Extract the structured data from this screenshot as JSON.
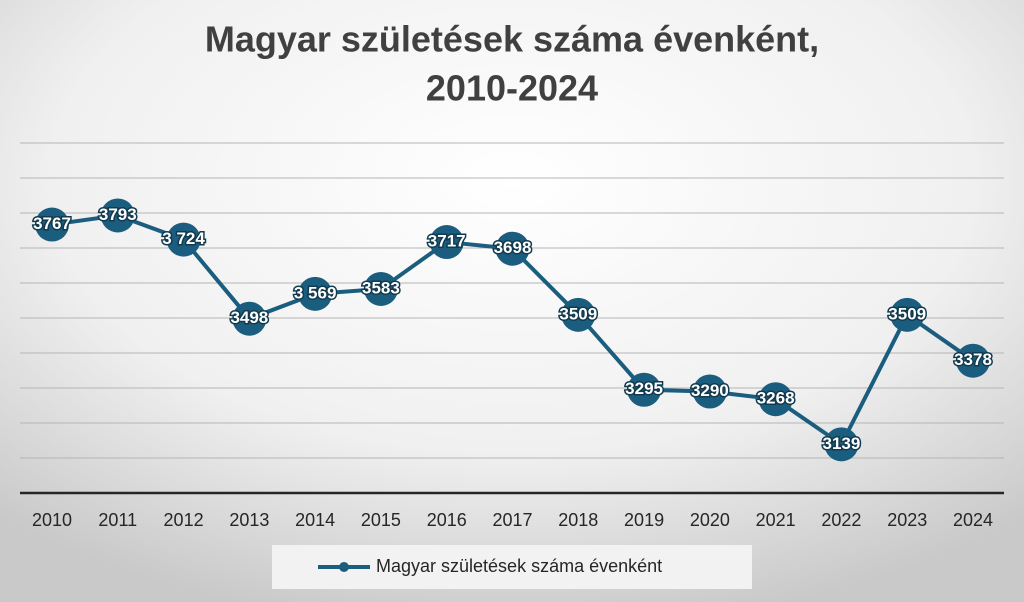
{
  "chart_data": {
    "type": "line",
    "title": [
      "Magyar születések száma évenként,",
      "2010-2024"
    ],
    "categories": [
      "2010",
      "2011",
      "2012",
      "2013",
      "2014",
      "2015",
      "2016",
      "2017",
      "2018",
      "2019",
      "2020",
      "2021",
      "2022",
      "2023",
      "2024"
    ],
    "series": [
      {
        "name": "Magyar születések száma évenként",
        "color": "#1b5d7e",
        "values": [
          3767,
          3793,
          3724,
          3498,
          3569,
          3583,
          3717,
          3698,
          3509,
          3295,
          3290,
          3268,
          3139,
          3509,
          3378
        ],
        "value_labels": [
          "3767",
          "3793",
          "3 724",
          "3498",
          "3 569",
          "3583",
          "3717",
          "3698",
          "3509",
          "3295",
          "3290",
          "3268",
          "3139",
          "3509",
          "3378"
        ]
      }
    ],
    "ylim": [
      3000,
      4000
    ],
    "yticks": [
      3000,
      3100,
      3200,
      3300,
      3400,
      3500,
      3600,
      3700,
      3800,
      3900,
      4000
    ],
    "grid": true,
    "legend": "bottom"
  }
}
